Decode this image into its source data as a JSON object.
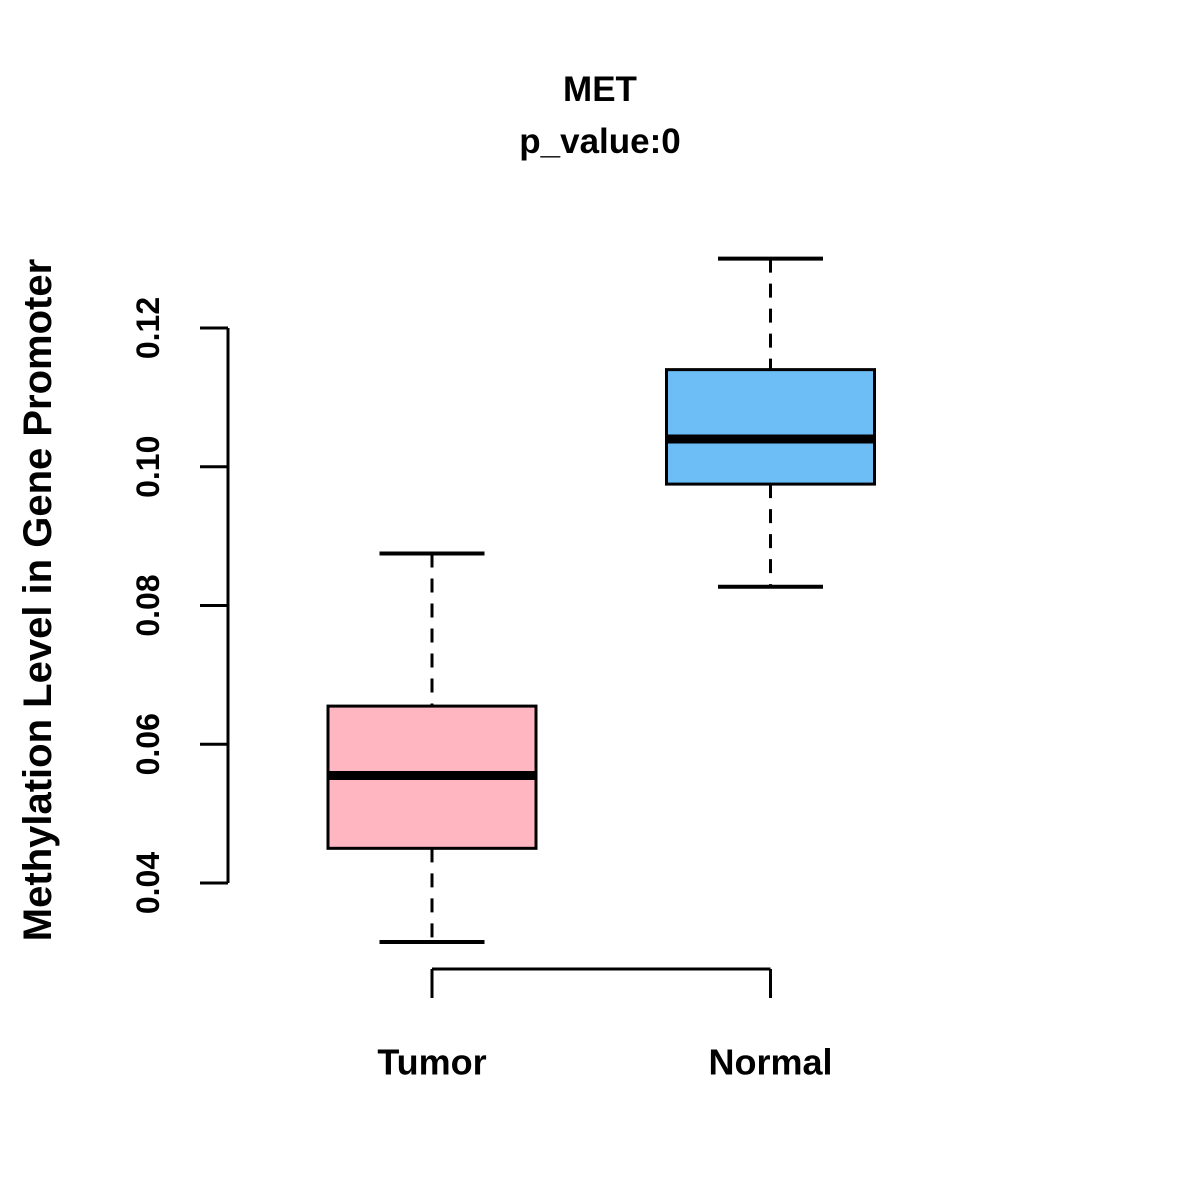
{
  "chart_data": {
    "type": "boxplot",
    "title": "MET",
    "subtitle": "p_value:0",
    "ylabel": "Methylation Level in Gene Promoter",
    "xlabel": "",
    "ytick_labels": [
      "0.04",
      "0.06",
      "0.08",
      "0.10",
      "0.12"
    ],
    "ytick_values": [
      0.04,
      0.06,
      0.08,
      0.1,
      0.12
    ],
    "ylim": [
      0.0295,
      0.1325
    ],
    "grid": false,
    "legend": false,
    "groups": [
      {
        "label": "Tumor",
        "fill_color": "#FFB6C1",
        "whisker_low": 0.0315,
        "q1": 0.045,
        "median": 0.0555,
        "q3": 0.0655,
        "whisker_high": 0.0875
      },
      {
        "label": "Normal",
        "fill_color": "#6DBEF6",
        "whisker_low": 0.0827,
        "q1": 0.0975,
        "median": 0.104,
        "q3": 0.114,
        "whisker_high": 0.13
      }
    ],
    "colors": {
      "border": "#000000",
      "median": "#000000",
      "axis": "#000000",
      "background": "#FFFFFF"
    },
    "whisker_style": "dashed"
  }
}
